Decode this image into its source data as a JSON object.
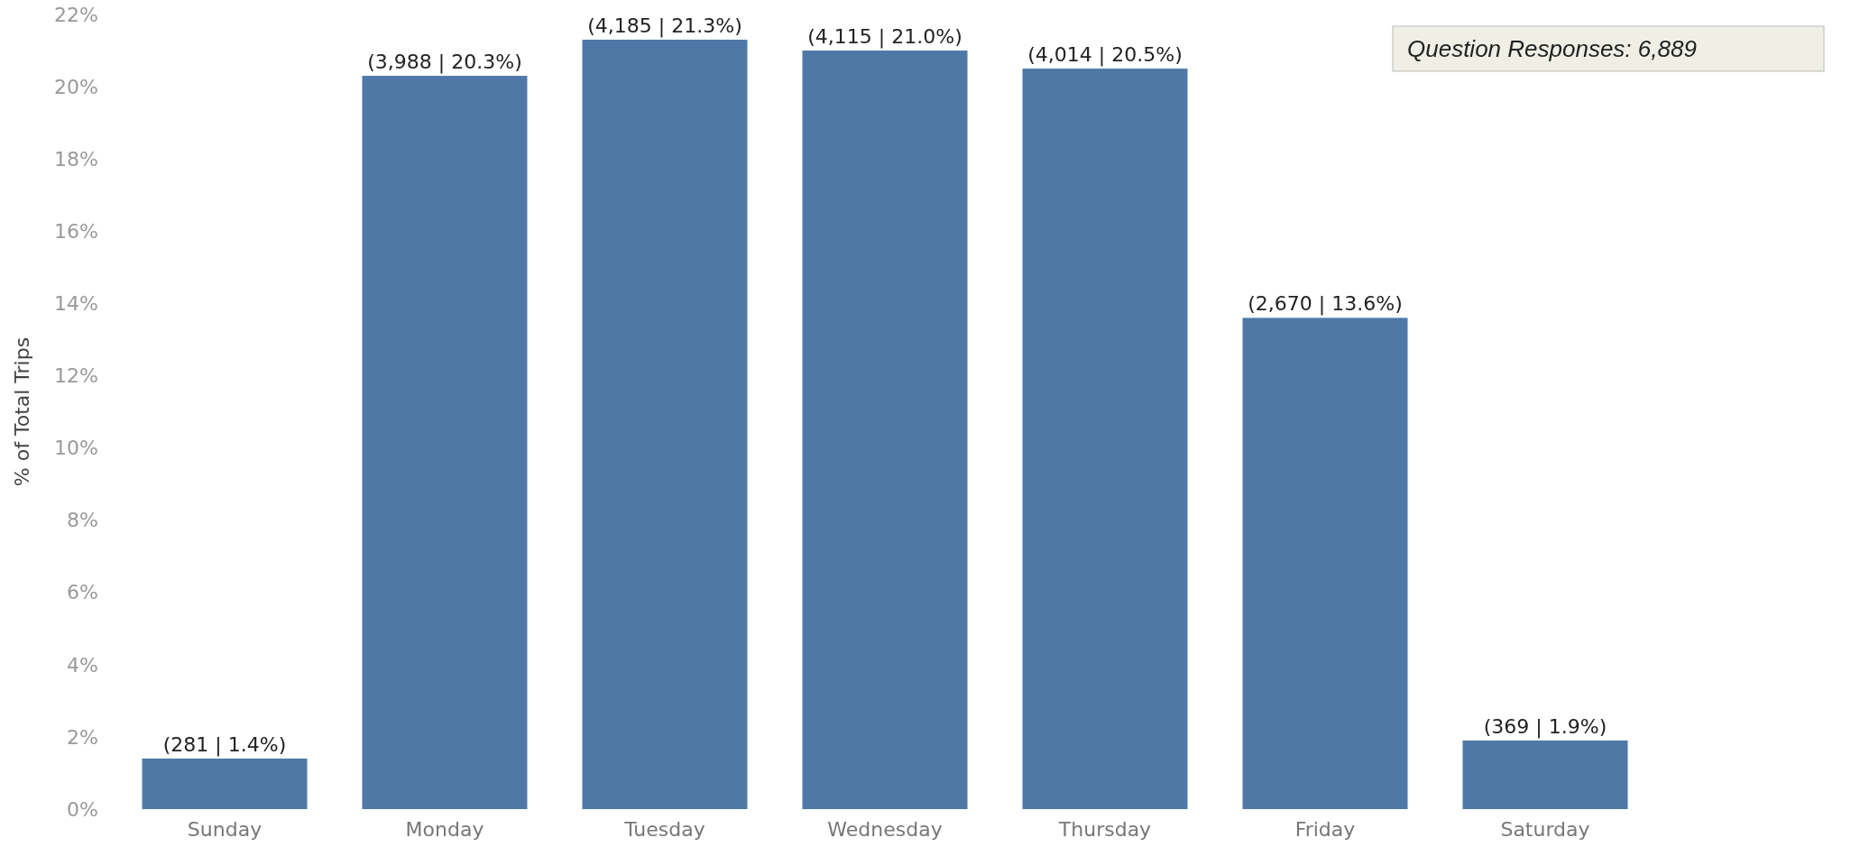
{
  "chart_data": {
    "type": "bar",
    "ylabel": "% of Total Trips",
    "categories": [
      "Sunday",
      "Monday",
      "Tuesday",
      "Wednesday",
      "Thursday",
      "Friday",
      "Saturday"
    ],
    "values": [
      1.4,
      20.3,
      21.3,
      21.0,
      20.5,
      13.6,
      1.9
    ],
    "value_labels": [
      "(281 | 1.4%)",
      "(3,988 | 20.3%)",
      "(4,185 | 21.3%)",
      "(4,115 | 21.0%)",
      "(4,014 | 20.5%)",
      "(2,670 | 13.6%)",
      "(369 | 1.9%)"
    ],
    "color": "#4e79a7",
    "ylim": [
      0,
      22
    ],
    "yticks": [
      {
        "value": 0,
        "label": "0%"
      },
      {
        "value": 2,
        "label": "2%"
      },
      {
        "value": 4,
        "label": "4%"
      },
      {
        "value": 6,
        "label": "6%"
      },
      {
        "value": 8,
        "label": "8%"
      },
      {
        "value": 10,
        "label": "10%"
      },
      {
        "value": 12,
        "label": "12%"
      },
      {
        "value": 14,
        "label": "14%"
      },
      {
        "value": 16,
        "label": "16%"
      },
      {
        "value": 18,
        "label": "18%"
      },
      {
        "value": 20,
        "label": "20%"
      },
      {
        "value": 22,
        "label": "22%"
      }
    ],
    "grid": false,
    "annotations": [
      "Question Responses: 6,889"
    ]
  }
}
